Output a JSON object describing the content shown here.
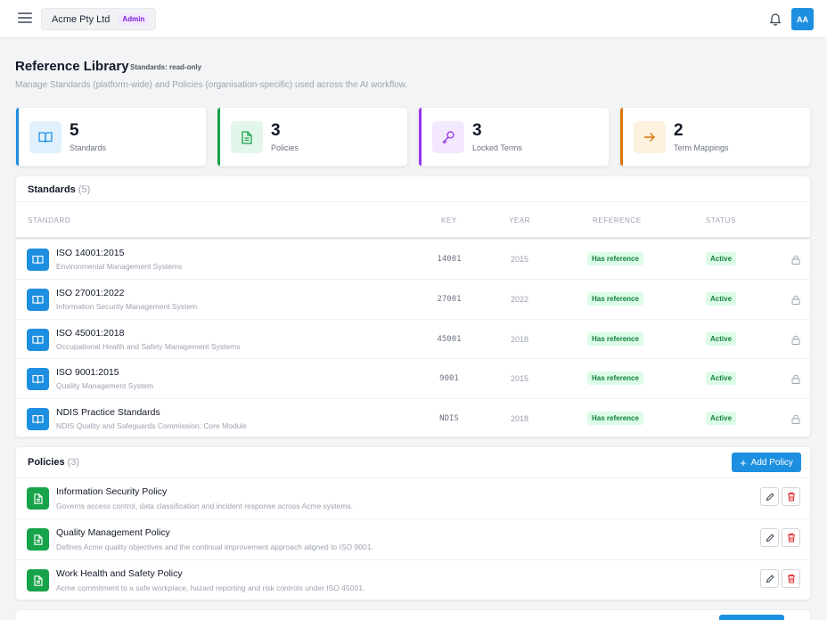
{
  "topbar": {
    "org_name": "Acme Pty Ltd",
    "role_badge": "Admin",
    "avatar_initials": "AA"
  },
  "header": {
    "title": "Reference Library",
    "readonly_note": "Standards: read-only",
    "description": "Manage Standards (platform-wide) and Policies (organisation-specific) used across the AI workflow."
  },
  "stats": [
    {
      "value": "5",
      "label": "Standards",
      "icon": "book-icon",
      "color": "#1d8fe0"
    },
    {
      "value": "3",
      "label": "Policies",
      "icon": "document-icon",
      "color": "#16a34a"
    },
    {
      "value": "3",
      "label": "Locked Terms",
      "icon": "key-icon",
      "color": "#9333ea"
    },
    {
      "value": "2",
      "label": "Term Mappings",
      "icon": "arrow-right-icon",
      "color": "#d97706"
    }
  ],
  "standards": {
    "title": "Standards",
    "count": "(5)",
    "columns": {
      "standard": "STANDARD",
      "key": "KEY",
      "year": "YEAR",
      "reference": "REFERENCE",
      "status": "STATUS"
    },
    "rows": [
      {
        "name": "ISO 14001:2015",
        "desc": "Environmental Management Systems",
        "key": "14001",
        "year": "2015",
        "reference": "Has reference",
        "status": "Active"
      },
      {
        "name": "ISO 27001:2022",
        "desc": "Information Security Management System",
        "key": "27001",
        "year": "2022",
        "reference": "Has reference",
        "status": "Active"
      },
      {
        "name": "ISO 45001:2018",
        "desc": "Occupational Health and Safety Management Systems",
        "key": "45001",
        "year": "2018",
        "reference": "Has reference",
        "status": "Active"
      },
      {
        "name": "ISO 9001:2015",
        "desc": "Quality Management System",
        "key": "9001",
        "year": "2015",
        "reference": "Has reference",
        "status": "Active"
      },
      {
        "name": "NDIS Practice Standards",
        "desc": "NDIS Quality and Safeguards Commission: Core Module",
        "key": "NDIS",
        "year": "2018",
        "reference": "Has reference",
        "status": "Active"
      }
    ]
  },
  "policies": {
    "title": "Policies",
    "count": "(3)",
    "add_label": "Add Policy",
    "rows": [
      {
        "name": "Information Security Policy",
        "desc": "Governs access control, data classification and incident response across Acme systems."
      },
      {
        "name": "Quality Management Policy",
        "desc": "Defines Acme quality objectives and the continual improvement approach aligned to ISO 9001."
      },
      {
        "name": "Work Health and Safety Policy",
        "desc": "Acme commitment to a safe workplace, hazard reporting and risk controls under ISO 45001."
      }
    ]
  }
}
